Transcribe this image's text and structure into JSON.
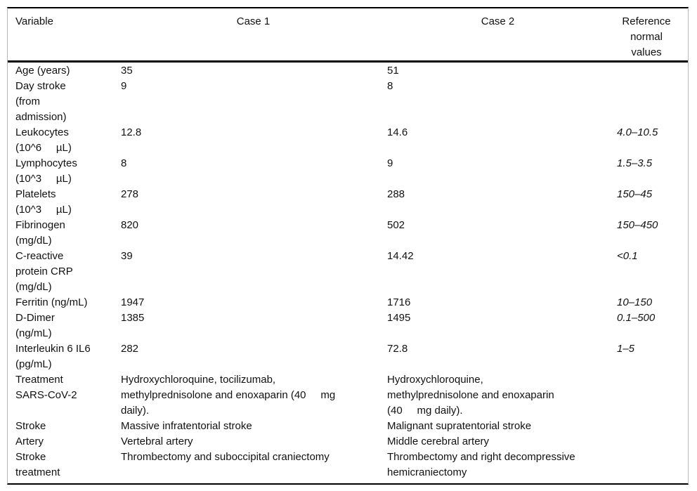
{
  "table": {
    "headers": {
      "variable": "Variable",
      "case1": "Case 1",
      "case2": "Case 2",
      "reference": "Reference\nnormal\nvalues"
    },
    "rows": [
      {
        "variable": "Age (years)",
        "case1": "35",
        "case2": "51",
        "reference": ""
      },
      {
        "variable": "Day stroke\n(from\nadmission)",
        "case1": "9",
        "case2": "8",
        "reference": ""
      },
      {
        "variable": "Leukocytes\n(10^6     µL)",
        "case1": "12.8",
        "case2": "14.6",
        "reference": "4.0–10.5"
      },
      {
        "variable": "Lymphocytes\n(10^3     µL)",
        "case1": "8",
        "case2": "9",
        "reference": "1.5–3.5"
      },
      {
        "variable": "Platelets\n(10^3     µL)",
        "case1": "278",
        "case2": "288",
        "reference": "150–45"
      },
      {
        "variable": "Fibrinogen\n(mg/dL)",
        "case1": "820",
        "case2": "502",
        "reference": "150–450"
      },
      {
        "variable": "C-reactive\nprotein CRP\n(mg/dL)",
        "case1": "39",
        "case2": "14.42",
        "reference": "<0.1"
      },
      {
        "variable": "Ferritin (ng/mL)",
        "case1": "1947",
        "case2": "1716",
        "reference": "10–150"
      },
      {
        "variable": "D-Dimer\n(ng/mL)",
        "case1": "1385",
        "case2": "1495",
        "reference": "0.1–500"
      },
      {
        "variable": "Interleukin 6 IL6\n(pg/mL)",
        "case1": "282",
        "case2": "72.8",
        "reference": "1–5"
      },
      {
        "variable": "Treatment\nSARS-CoV-2",
        "case1": "Hydroxychloroquine, tocilizumab,\nmethylprednisolone and enoxaparin (40     mg\ndaily).",
        "case2": "Hydroxychloroquine,\nmethylprednisolone and enoxaparin\n(40     mg daily).",
        "reference": ""
      },
      {
        "variable": "Stroke",
        "case1": "Massive infratentorial stroke",
        "case2": "Malignant supratentorial stroke",
        "reference": ""
      },
      {
        "variable": "Artery",
        "case1": "Vertebral artery",
        "case2": "Middle cerebral artery",
        "reference": ""
      },
      {
        "variable": "Stroke\ntreatment",
        "case1": "Thrombectomy and suboccipital craniectomy",
        "case2": "Thrombectomy and right decompressive\nhemicraniectomy",
        "reference": ""
      }
    ]
  }
}
